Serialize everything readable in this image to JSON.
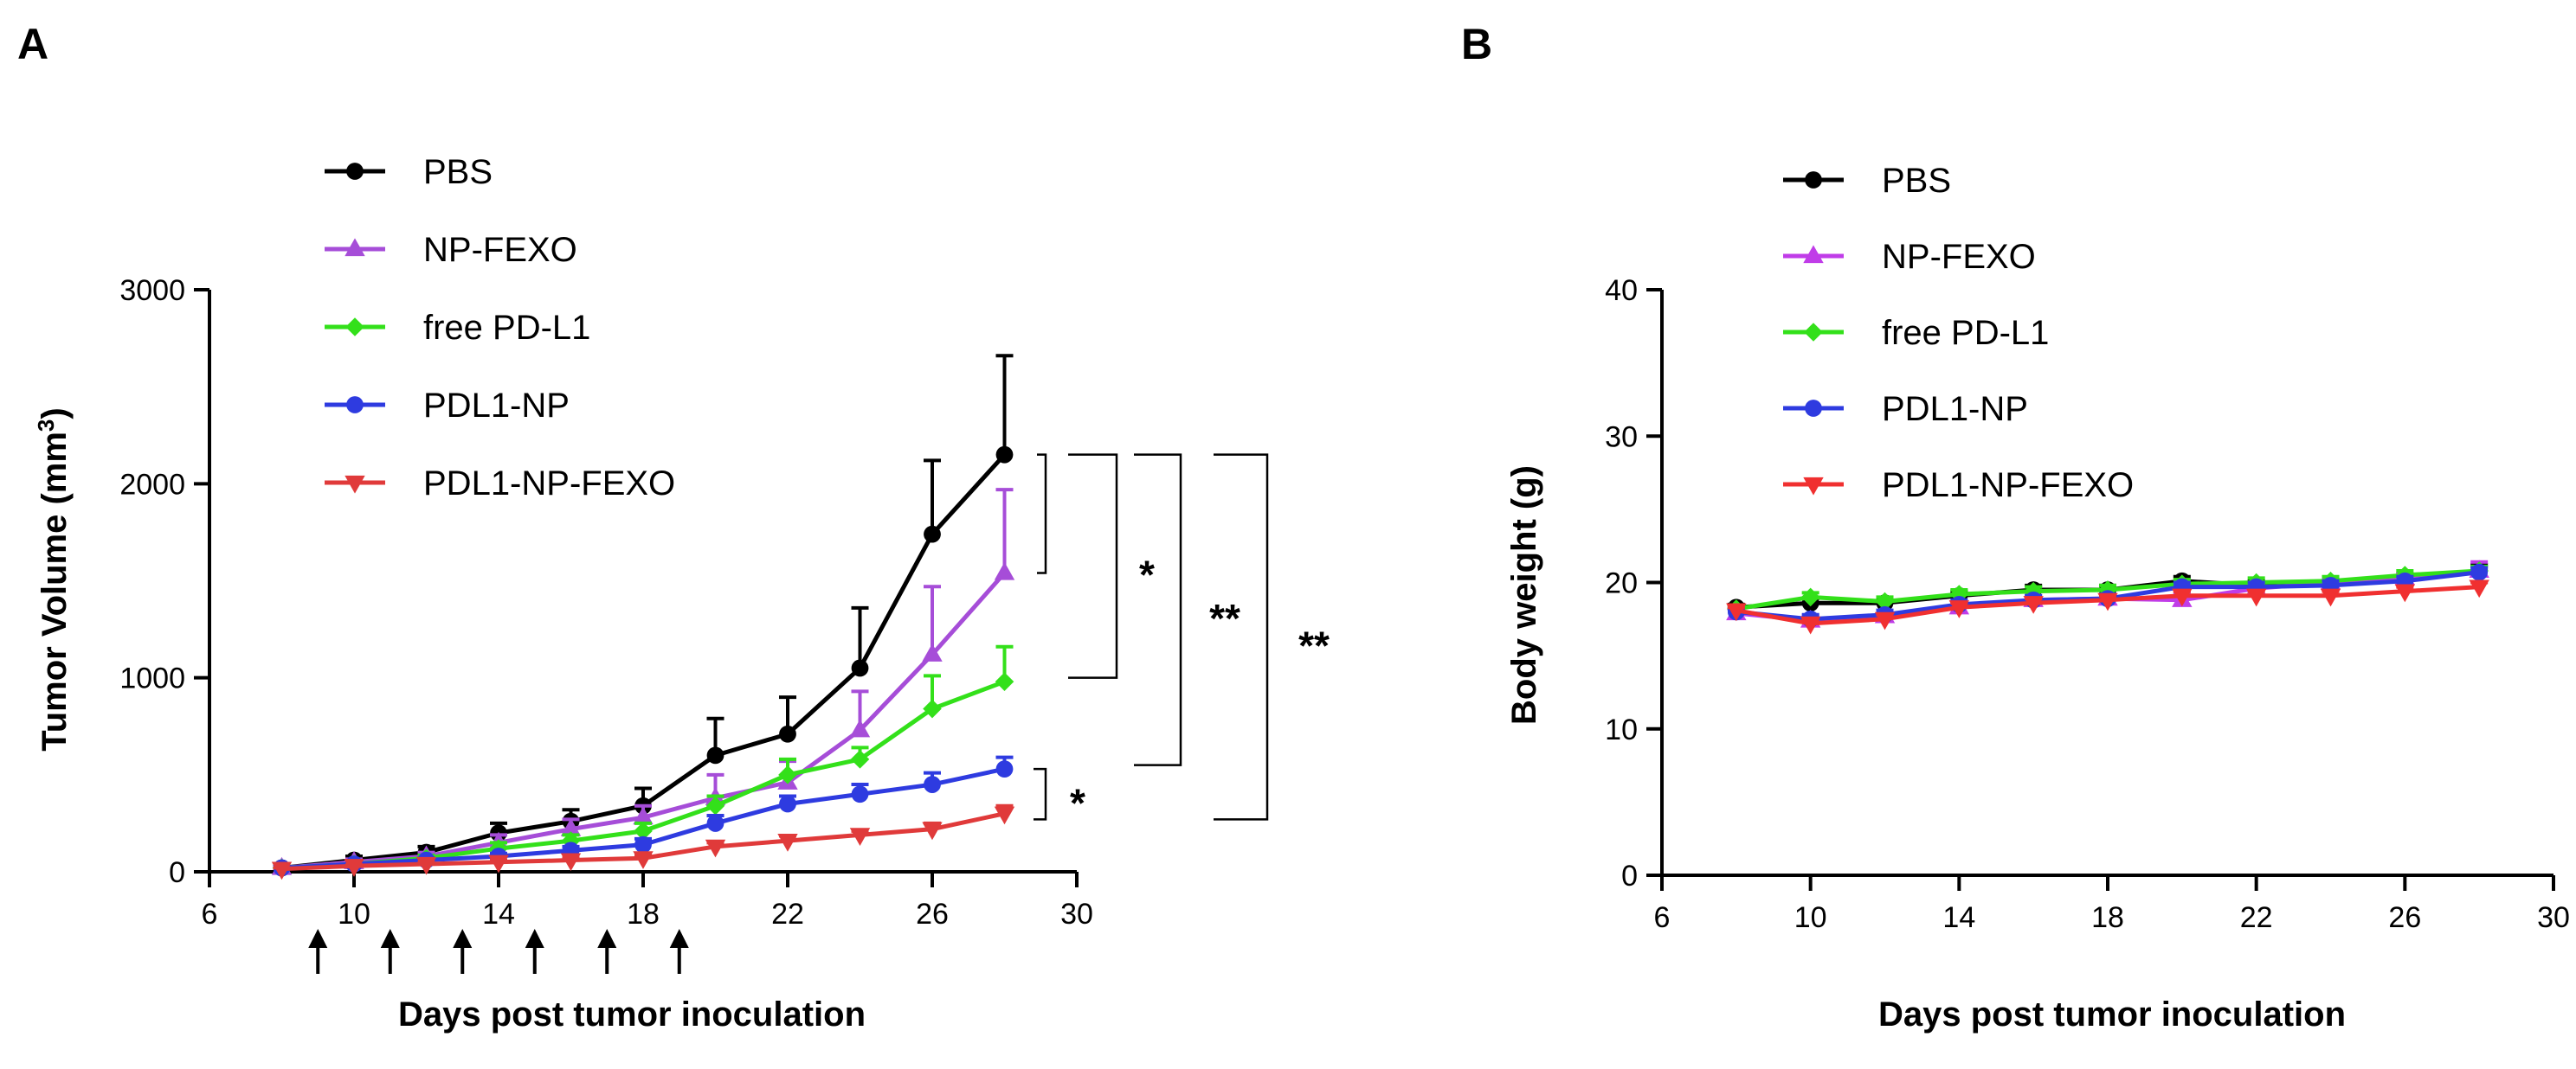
{
  "figure": {
    "panels": [
      "A",
      "B"
    ]
  },
  "chart_data": [
    {
      "panel": "A",
      "type": "line",
      "title": "",
      "xlabel": "Days post tumor inoculation",
      "ylabel": "Tumor Volume (mm3)",
      "ylabel_main": "Tumor Volume (mm",
      "ylabel_superscript": "3",
      "ylabel_close": ")",
      "xlim": [
        6,
        30
      ],
      "ylim": [
        0,
        3000
      ],
      "xticks": [
        6,
        10,
        14,
        18,
        22,
        26,
        30
      ],
      "yticks": [
        0,
        1000,
        2000,
        3000
      ],
      "grid": false,
      "legend_position": "top-left",
      "series": [
        {
          "name": "PBS",
          "color": "#000000",
          "marker": "circle",
          "x": [
            8,
            10,
            12,
            14,
            16,
            18,
            20,
            22,
            24,
            26,
            28
          ],
          "y": [
            20,
            60,
            100,
            200,
            260,
            340,
            600,
            710,
            1050,
            1740,
            2150
          ],
          "err": [
            10,
            20,
            30,
            50,
            60,
            90,
            190,
            190,
            310,
            380,
            510
          ]
        },
        {
          "name": "NP-FEXO",
          "color": "#A64DD8",
          "marker": "triangle-up",
          "x": [
            8,
            10,
            12,
            14,
            16,
            18,
            20,
            22,
            24,
            26,
            28
          ],
          "y": [
            20,
            50,
            80,
            150,
            220,
            280,
            380,
            460,
            730,
            1120,
            1540
          ],
          "err": [
            10,
            15,
            20,
            40,
            50,
            60,
            120,
            110,
            200,
            350,
            430
          ]
        },
        {
          "name": "free PD-L1",
          "color": "#33E01A",
          "marker": "diamond",
          "x": [
            8,
            10,
            12,
            14,
            16,
            18,
            20,
            22,
            24,
            26,
            28
          ],
          "y": [
            20,
            40,
            70,
            120,
            160,
            210,
            340,
            500,
            580,
            840,
            980
          ],
          "err": [
            10,
            10,
            15,
            30,
            30,
            40,
            50,
            80,
            60,
            170,
            180
          ]
        },
        {
          "name": "PDL1-NP",
          "color": "#2E3BE0",
          "marker": "circle",
          "x": [
            8,
            10,
            12,
            14,
            16,
            18,
            20,
            22,
            24,
            26,
            28
          ],
          "y": [
            20,
            40,
            60,
            80,
            110,
            140,
            250,
            350,
            400,
            450,
            530
          ],
          "err": [
            8,
            10,
            10,
            15,
            20,
            30,
            40,
            40,
            50,
            60,
            60
          ]
        },
        {
          "name": "PDL1-NP-FEXO",
          "color": "#E03A3A",
          "marker": "triangle-down",
          "x": [
            8,
            10,
            12,
            14,
            16,
            18,
            20,
            22,
            24,
            26,
            28
          ],
          "y": [
            15,
            30,
            40,
            50,
            60,
            70,
            130,
            160,
            190,
            220,
            300
          ],
          "err": [
            5,
            5,
            8,
            10,
            10,
            15,
            20,
            25,
            20,
            30,
            40
          ]
        }
      ],
      "dose_days": [
        9,
        11,
        13,
        15,
        17,
        19
      ],
      "significance": [
        {
          "label": "",
          "from_y": 1540,
          "to_y": 2150
        },
        {
          "label": "*",
          "from_y": 1000,
          "to_y": 2150
        },
        {
          "label": "**",
          "from_y": 550,
          "to_y": 2150
        },
        {
          "label": "**",
          "from_y": 270,
          "to_y": 2150
        },
        {
          "label": "*",
          "from_y": 270,
          "to_y": 530
        }
      ]
    },
    {
      "panel": "B",
      "type": "line",
      "title": "",
      "xlabel": "Days post tumor inoculation",
      "ylabel": "Body weight (g)",
      "xlim": [
        6,
        30
      ],
      "ylim": [
        0,
        40
      ],
      "xticks": [
        6,
        10,
        14,
        18,
        22,
        26,
        30
      ],
      "yticks": [
        0,
        10,
        20,
        30,
        40
      ],
      "grid": false,
      "legend_position": "top-left",
      "series": [
        {
          "name": "PBS",
          "color": "#000000",
          "marker": "circle",
          "x": [
            8,
            10,
            12,
            14,
            16,
            18,
            20,
            22,
            24,
            26,
            28
          ],
          "y": [
            18.3,
            18.6,
            18.6,
            19.1,
            19.5,
            19.5,
            20.1,
            19.8,
            19.9,
            20.3,
            20.8
          ],
          "err": [
            0.2,
            0.3,
            0.3,
            0.3,
            0.3,
            0.3,
            0.3,
            0.3,
            0.3,
            0.3,
            0.4
          ]
        },
        {
          "name": "NP-FEXO",
          "color": "#C03CE8",
          "marker": "triangle-up",
          "x": [
            8,
            10,
            12,
            14,
            16,
            18,
            20,
            22,
            24,
            26,
            28
          ],
          "y": [
            17.9,
            17.4,
            17.7,
            18.3,
            18.8,
            18.9,
            18.8,
            19.6,
            20.0,
            20.3,
            20.8
          ],
          "err": [
            0.3,
            0.3,
            0.3,
            0.3,
            0.3,
            0.3,
            0.5,
            0.3,
            0.3,
            0.3,
            0.6
          ]
        },
        {
          "name": "free PD-L1",
          "color": "#33E01A",
          "marker": "diamond",
          "x": [
            8,
            10,
            12,
            14,
            16,
            18,
            20,
            22,
            24,
            26,
            28
          ],
          "y": [
            18.2,
            19.0,
            18.7,
            19.2,
            19.4,
            19.5,
            19.9,
            20.0,
            20.1,
            20.5,
            20.8
          ],
          "err": [
            0.2,
            0.3,
            0.3,
            0.3,
            0.3,
            0.3,
            0.3,
            0.3,
            0.3,
            0.3,
            0.3
          ]
        },
        {
          "name": "PDL1-NP",
          "color": "#2E3BE0",
          "marker": "circle",
          "x": [
            8,
            10,
            12,
            14,
            16,
            18,
            20,
            22,
            24,
            26,
            28
          ],
          "y": [
            18.0,
            17.5,
            17.8,
            18.5,
            18.8,
            18.9,
            19.7,
            19.7,
            19.8,
            20.1,
            20.7
          ],
          "err": [
            0.2,
            0.3,
            0.3,
            0.3,
            0.3,
            0.3,
            0.3,
            0.3,
            0.3,
            0.3,
            0.3
          ]
        },
        {
          "name": "PDL1-NP-FEXO",
          "color": "#F03030",
          "marker": "triangle-down",
          "x": [
            8,
            10,
            12,
            14,
            16,
            18,
            20,
            22,
            24,
            26,
            28
          ],
          "y": [
            18.1,
            17.2,
            17.5,
            18.3,
            18.6,
            18.8,
            19.1,
            19.1,
            19.1,
            19.4,
            19.7
          ],
          "err": [
            0.2,
            0.3,
            0.3,
            0.3,
            0.3,
            0.3,
            0.3,
            0.3,
            0.3,
            0.3,
            0.3
          ]
        }
      ]
    }
  ]
}
